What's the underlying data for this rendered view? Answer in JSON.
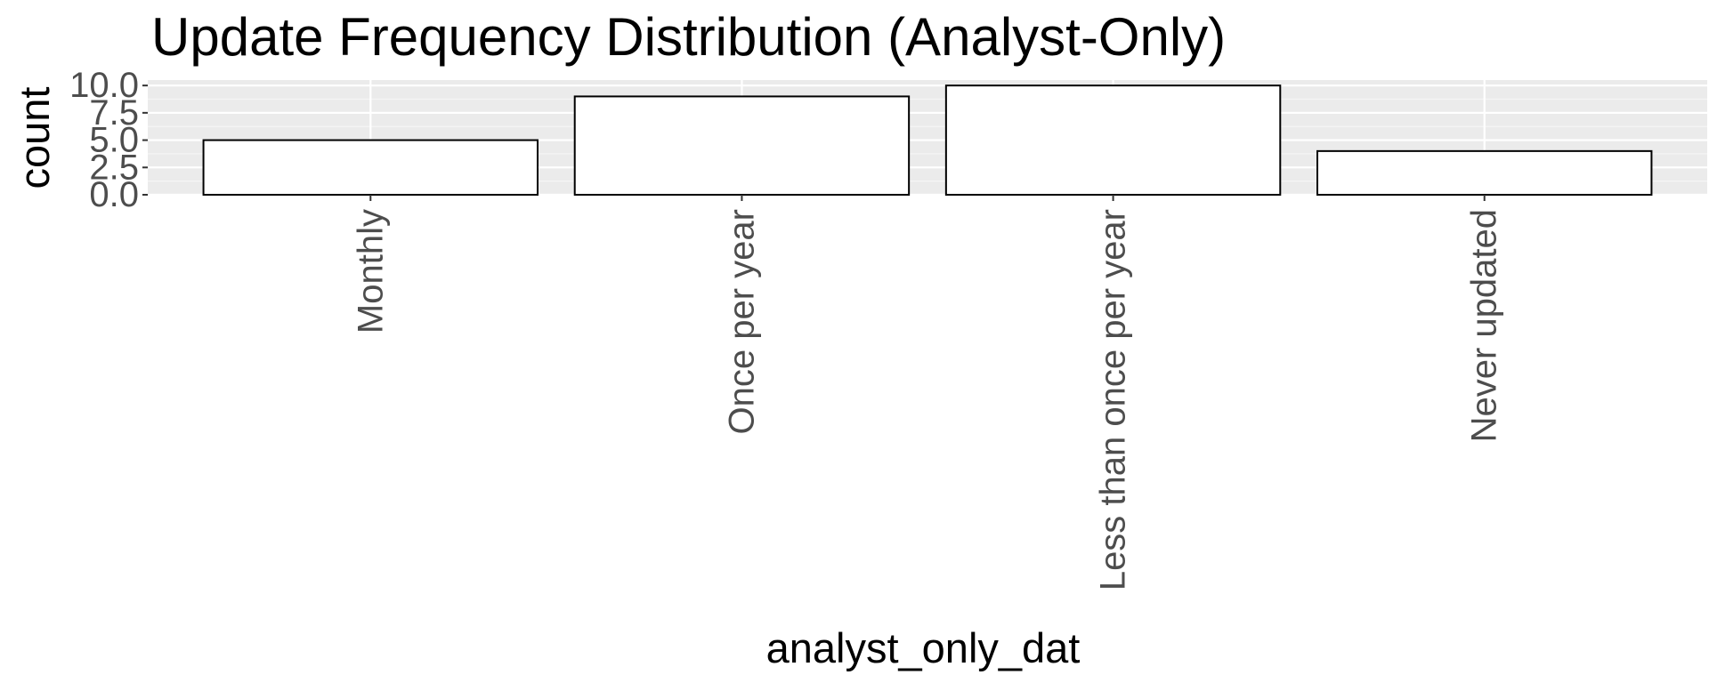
{
  "chart_data": {
    "type": "bar",
    "title": "Update Frequency Distribution (Analyst-Only)",
    "xlabel": "analyst_only_dat",
    "ylabel": "count",
    "categories": [
      "Monthly",
      "Once per year",
      "Less than once per year",
      "Never updated"
    ],
    "values": [
      5,
      9,
      10,
      4
    ],
    "ylim": [
      0,
      10.5
    ],
    "yticks": [
      0,
      2.5,
      5,
      7.5,
      10
    ],
    "ytick_labels": [
      "0.0",
      "2.5",
      "5.0",
      "7.5",
      "10.0"
    ],
    "grid": true,
    "legend": "none",
    "colors": {
      "panel_background": "#ebebeb",
      "grid_major": "#ffffff",
      "grid_minor": "#f5f5f5",
      "bar_fill": "#ffffff",
      "bar_outline": "#000000",
      "tick_text": "#4d4d4d",
      "title_text": "#000000"
    }
  }
}
